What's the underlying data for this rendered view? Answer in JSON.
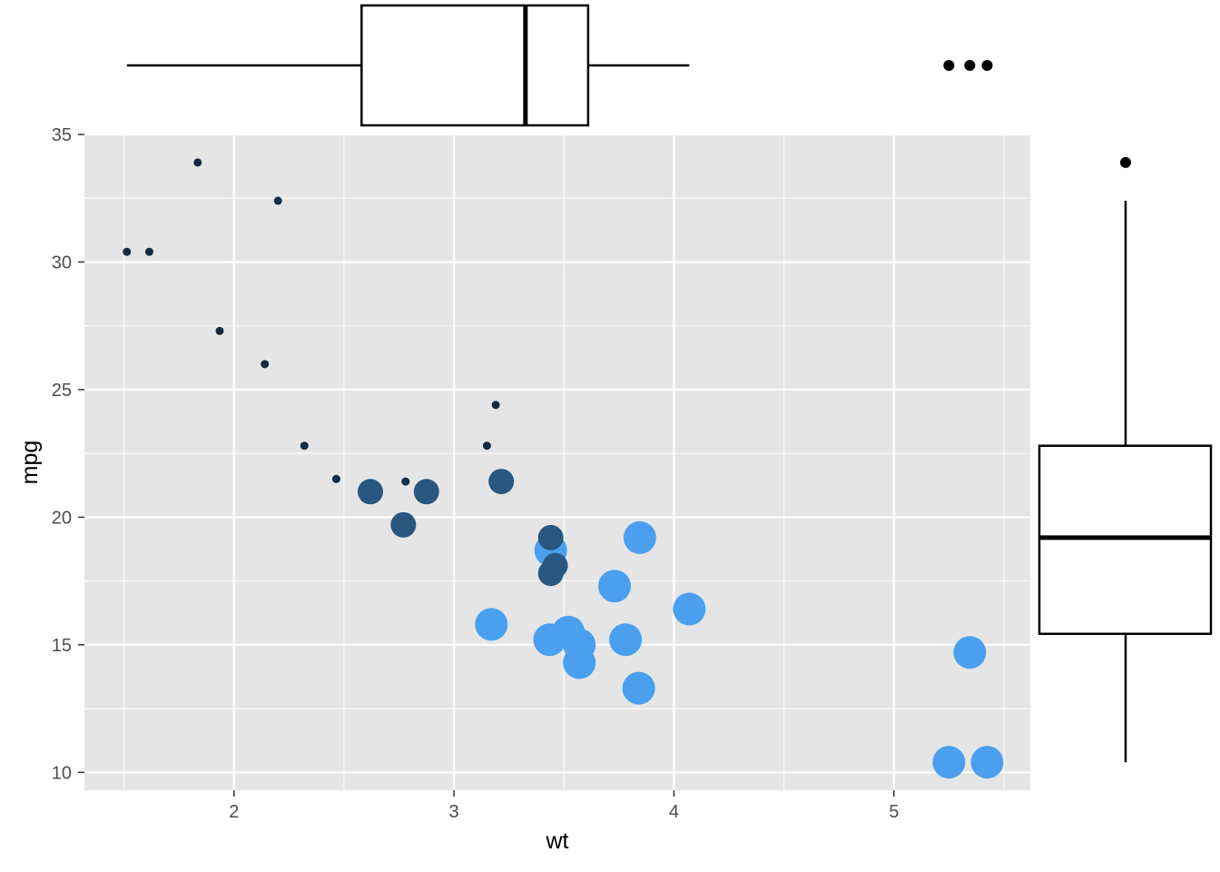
{
  "chart_data": {
    "type": "scatter",
    "xlabel": "wt",
    "ylabel": "mpg",
    "xlim": [
      1.32,
      5.62
    ],
    "ylim": [
      9.3,
      35.0
    ],
    "xticks": [
      2,
      3,
      4,
      5
    ],
    "yticks": [
      10,
      15,
      20,
      25,
      30,
      35
    ],
    "grid": true,
    "legend": "none",
    "colors": {
      "panel_bg": "#e5e5e5",
      "grid": "#ffffff",
      "cyl4": "#132b43",
      "cyl6": "#29577f",
      "cyl8": "#4aa0ee",
      "box_line": "#000000"
    },
    "points": [
      {
        "x": 2.62,
        "y": 21.0,
        "group": 6
      },
      {
        "x": 2.875,
        "y": 21.0,
        "group": 6
      },
      {
        "x": 2.32,
        "y": 22.8,
        "group": 4
      },
      {
        "x": 3.215,
        "y": 21.4,
        "group": 6
      },
      {
        "x": 3.44,
        "y": 18.7,
        "group": 8
      },
      {
        "x": 3.46,
        "y": 18.1,
        "group": 6
      },
      {
        "x": 3.57,
        "y": 14.3,
        "group": 8
      },
      {
        "x": 3.19,
        "y": 24.4,
        "group": 4
      },
      {
        "x": 3.15,
        "y": 22.8,
        "group": 4
      },
      {
        "x": 3.44,
        "y": 19.2,
        "group": 6
      },
      {
        "x": 3.44,
        "y": 17.8,
        "group": 6
      },
      {
        "x": 4.07,
        "y": 16.4,
        "group": 8
      },
      {
        "x": 3.73,
        "y": 17.3,
        "group": 8
      },
      {
        "x": 3.78,
        "y": 15.2,
        "group": 8
      },
      {
        "x": 5.25,
        "y": 10.4,
        "group": 8
      },
      {
        "x": 5.424,
        "y": 10.4,
        "group": 8
      },
      {
        "x": 5.345,
        "y": 14.7,
        "group": 8
      },
      {
        "x": 2.2,
        "y": 32.4,
        "group": 4
      },
      {
        "x": 1.615,
        "y": 30.4,
        "group": 4
      },
      {
        "x": 1.835,
        "y": 33.9,
        "group": 4
      },
      {
        "x": 2.465,
        "y": 21.5,
        "group": 4
      },
      {
        "x": 3.52,
        "y": 15.5,
        "group": 8
      },
      {
        "x": 3.435,
        "y": 15.2,
        "group": 8
      },
      {
        "x": 3.84,
        "y": 13.3,
        "group": 8
      },
      {
        "x": 3.845,
        "y": 19.2,
        "group": 8
      },
      {
        "x": 1.935,
        "y": 27.3,
        "group": 4
      },
      {
        "x": 2.14,
        "y": 26.0,
        "group": 4
      },
      {
        "x": 1.513,
        "y": 30.4,
        "group": 4
      },
      {
        "x": 3.17,
        "y": 15.8,
        "group": 8
      },
      {
        "x": 2.77,
        "y": 19.7,
        "group": 6
      },
      {
        "x": 3.57,
        "y": 15.0,
        "group": 8
      },
      {
        "x": 2.78,
        "y": 21.4,
        "group": 4
      }
    ],
    "x_boxplot": {
      "whisker_low": 1.513,
      "q1": 2.58,
      "median": 3.325,
      "q3": 3.61,
      "whisker_high": 4.07,
      "outliers": [
        5.25,
        5.345,
        5.424
      ]
    },
    "y_boxplot": {
      "whisker_low": 10.4,
      "q1": 15.43,
      "median": 19.2,
      "q3": 22.8,
      "whisker_high": 32.4,
      "outliers": [
        33.9
      ]
    }
  }
}
